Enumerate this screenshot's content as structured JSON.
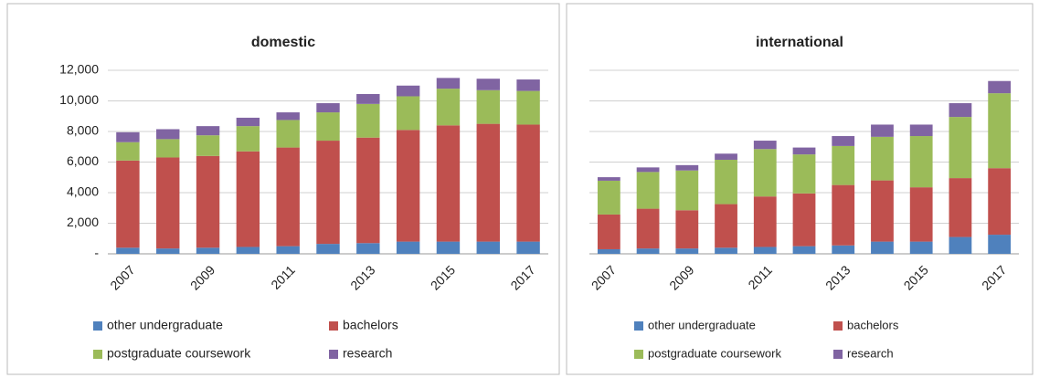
{
  "chart_data": [
    {
      "type": "stacked-bar",
      "title": "domestic",
      "categories": [
        "2007",
        null,
        "2009",
        null,
        "2011",
        null,
        "2013",
        null,
        "2015",
        null,
        "2017"
      ],
      "series": [
        {
          "name": "other undergraduate",
          "color": "#4f81bd",
          "values": [
            400,
            350,
            400,
            450,
            500,
            650,
            700,
            800,
            800,
            800,
            800
          ]
        },
        {
          "name": "bachelors",
          "color": "#c0504d",
          "values": [
            5700,
            5950,
            6000,
            6250,
            6450,
            6750,
            6900,
            7300,
            7600,
            7700,
            7650
          ]
        },
        {
          "name": "postgraduate coursework",
          "color": "#9bbb59",
          "values": [
            1200,
            1200,
            1350,
            1650,
            1800,
            1850,
            2200,
            2200,
            2400,
            2200,
            2200
          ]
        },
        {
          "name": "research",
          "color": "#8064a2",
          "values": [
            650,
            650,
            600,
            550,
            500,
            600,
            650,
            700,
            700,
            750,
            750
          ]
        }
      ],
      "ylim": [
        0,
        12000
      ],
      "yticks": [
        {
          "value": 0,
          "label": "-"
        },
        {
          "value": 2000,
          "label": "2,000"
        },
        {
          "value": 4000,
          "label": "4,000"
        },
        {
          "value": 6000,
          "label": "6,000"
        },
        {
          "value": 8000,
          "label": "8,000"
        },
        {
          "value": 10000,
          "label": "10,000"
        },
        {
          "value": 12000,
          "label": "12,000"
        }
      ],
      "grid": true
    },
    {
      "type": "stacked-bar",
      "title": "international",
      "categories": [
        "2007",
        null,
        "2009",
        null,
        "2011",
        null,
        "2013",
        null,
        "2015",
        null,
        "2017"
      ],
      "series": [
        {
          "name": "other undergraduate",
          "color": "#4f81bd",
          "values": [
            300,
            350,
            350,
            400,
            450,
            500,
            550,
            800,
            800,
            1100,
            1250
          ]
        },
        {
          "name": "bachelors",
          "color": "#c0504d",
          "values": [
            2270,
            2600,
            2500,
            2850,
            3300,
            3450,
            3950,
            4000,
            3550,
            3850,
            4350
          ]
        },
        {
          "name": "postgraduate coursework",
          "color": "#9bbb59",
          "values": [
            2210,
            2400,
            2600,
            2900,
            3100,
            2550,
            2550,
            2850,
            3350,
            4000,
            4900
          ]
        },
        {
          "name": "research",
          "color": "#8064a2",
          "values": [
            230,
            300,
            350,
            400,
            550,
            450,
            650,
            800,
            750,
            900,
            800
          ]
        }
      ],
      "ylim": [
        0,
        12000
      ],
      "yticks": [
        0,
        2000,
        4000,
        6000,
        8000,
        10000,
        12000
      ],
      "grid": true
    }
  ]
}
